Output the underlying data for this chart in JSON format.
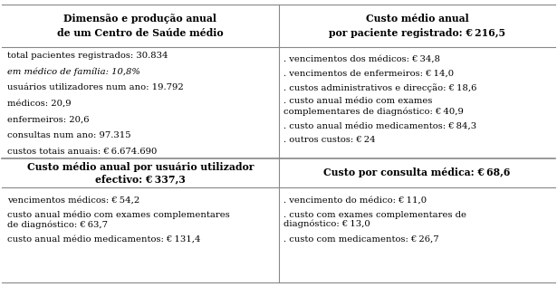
{
  "bg_color": "#ffffff",
  "line_color": "#888888",
  "text_color": "#000000",
  "header_row": {
    "left_line1": "Dimensão e produção anual",
    "left_line2": "de um Centro de Saúde médio",
    "right_line1": "Custo médio anual",
    "right_line2": "por paciente registrado: € 216,5"
  },
  "left_col_body": [
    "total pacientes registrados: 30.834",
    "em médico de família: 10,8%",
    "usuários utilizadores num ano: 19.792",
    "médicos: 20,9",
    "enfermeiros: 20,6",
    "consultas num ano: 97.315",
    "custos totais anuais: € 6.674.690"
  ],
  "left_col_italic": [
    1
  ],
  "right_col_body": [
    ". vencimentos dos médicos: € 34,8",
    ". vencimentos de enfermeiros: € 14,0",
    ". custos administrativos e direcção: € 18,6",
    ". custo anual médio com exames\ncomplementares de diagnóstico: € 40,9",
    ". custo anual médio medicamentos: € 84,3",
    ". outros custos: € 24"
  ],
  "second_header_row": {
    "left_line1": "Custo médio anual por usuário utilizador",
    "left_line2": "efectivo: € 337,3",
    "right_line1": "Custo por consulta médica: € 68,6"
  },
  "left_col_body2": [
    "vencimentos médicos: € 54,2",
    "custo anual médio com exames complementares\nde diagnóstico: € 63,7",
    "custo anual médio medicamentos: € 131,4"
  ],
  "right_col_body2": [
    ". vencimento do médico: € 11,0",
    ". custo com exames complementares de\ndiagnóstico: € 13,0",
    ". custo com medicamentos: € 26,7"
  ],
  "font_size_header": 7.8,
  "font_size_body": 7.2
}
